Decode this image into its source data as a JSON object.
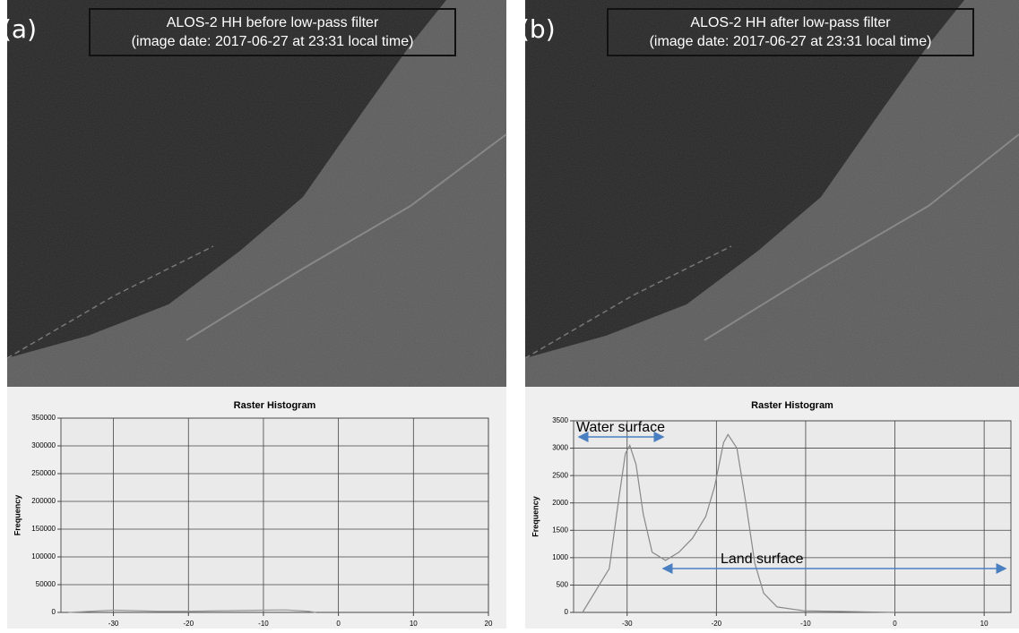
{
  "chart_data": [
    {
      "type": "line",
      "panel_label": "(a)",
      "image_title": [
        "ALOS-2 HH before low-pass filter",
        "(image date: 2017-06-27 at 23:31 local time)"
      ],
      "title": "Raster Histogram",
      "y_label": "Frequency",
      "x": [
        -36,
        -33,
        -30,
        -27,
        -24,
        -20,
        -15,
        -10,
        -7,
        -4,
        -3
      ],
      "series": [
        {
          "color": "#999999",
          "values": [
            0,
            2000,
            4000,
            3000,
            2000,
            2000,
            3000,
            4000,
            4500,
            2000,
            0
          ]
        }
      ],
      "xlim": [
        -37,
        20
      ],
      "ylim": [
        0,
        350000
      ],
      "xticks": [
        -30,
        -20,
        -10,
        0,
        10,
        20
      ],
      "yticks": [
        0,
        50000,
        100000,
        150000,
        200000,
        250000,
        300000,
        350000
      ],
      "grid": true
    },
    {
      "type": "line",
      "panel_label": "(b)",
      "image_title": [
        "ALOS-2 HH after low-pass filter",
        "(image date: 2017-06-27 at 23:31 local time)"
      ],
      "title": "Raster Histogram",
      "y_label": "Frequency",
      "x": [
        -35,
        -32,
        -31,
        -30.2,
        -29.7,
        -29,
        -28.2,
        -27.2,
        -25.7,
        -24.2,
        -22.7,
        -21.2,
        -20.2,
        -19.2,
        -18.7,
        -17.7,
        -16.7,
        -15.7,
        -14.7,
        -13.2,
        -10.2,
        0
      ],
      "series": [
        {
          "color": "#888888",
          "values": [
            0,
            800,
            2000,
            2900,
            3050,
            2700,
            1800,
            1100,
            950,
            1100,
            1350,
            1750,
            2300,
            3100,
            3250,
            3000,
            2000,
            900,
            350,
            100,
            30,
            0
          ]
        }
      ],
      "xlim": [
        -36,
        13
      ],
      "ylim": [
        0,
        3500
      ],
      "xticks": [
        -30,
        -20,
        -10,
        0,
        10
      ],
      "yticks": [
        0,
        500,
        1000,
        1500,
        2000,
        2500,
        3000,
        3500
      ],
      "grid": true,
      "annotations": [
        "Water surface",
        "Land surface"
      ]
    }
  ]
}
